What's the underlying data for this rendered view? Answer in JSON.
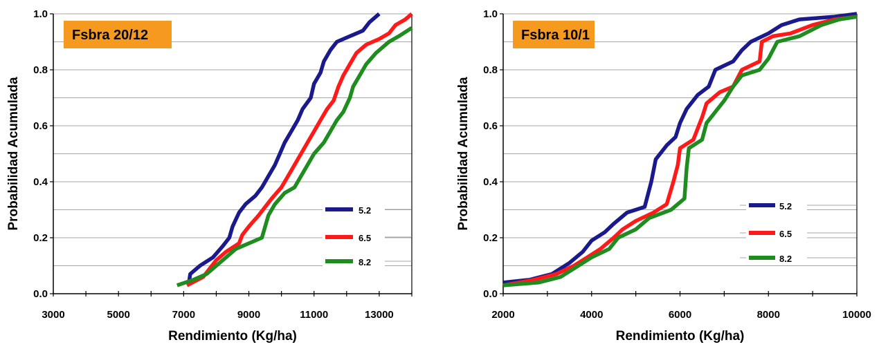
{
  "chart_data": [
    {
      "type": "line",
      "title": "Fsbra 20/12",
      "xlabel": "Rendimiento (Kg/ha)",
      "ylabel": "Probabilidad Acumulada",
      "xlim": [
        3000,
        14000
      ],
      "ylim": [
        0,
        1
      ],
      "x_ticks": [
        "3000",
        "5000",
        "7000",
        "9000",
        "11000",
        "13000"
      ],
      "x_tick_values": [
        3000,
        5000,
        7000,
        9000,
        11000,
        13000
      ],
      "y_ticks": [
        "0.0",
        "0.2",
        "0.4",
        "0.6",
        "0.8",
        "1.0"
      ],
      "y_tick_values": [
        0,
        0.2,
        0.4,
        0.6,
        0.8,
        1.0
      ],
      "grid": "horizontal",
      "legend_position": "bottom-right",
      "series": [
        {
          "name": "5.2",
          "color": "#1a1a8c",
          "points": [
            [
              7150,
              0.03
            ],
            [
              7200,
              0.07
            ],
            [
              7500,
              0.1
            ],
            [
              7900,
              0.13
            ],
            [
              8200,
              0.17
            ],
            [
              8400,
              0.2
            ],
            [
              8500,
              0.24
            ],
            [
              8700,
              0.29
            ],
            [
              8900,
              0.32
            ],
            [
              9200,
              0.35
            ],
            [
              9400,
              0.38
            ],
            [
              9600,
              0.42
            ],
            [
              9800,
              0.46
            ],
            [
              9950,
              0.5
            ],
            [
              10100,
              0.54
            ],
            [
              10300,
              0.58
            ],
            [
              10500,
              0.62
            ],
            [
              10650,
              0.66
            ],
            [
              10900,
              0.7
            ],
            [
              11000,
              0.75
            ],
            [
              11200,
              0.79
            ],
            [
              11300,
              0.83
            ],
            [
              11500,
              0.87
            ],
            [
              11700,
              0.9
            ],
            [
              12100,
              0.92
            ],
            [
              12500,
              0.94
            ],
            [
              12700,
              0.97
            ],
            [
              13000,
              1.0
            ]
          ]
        },
        {
          "name": "6.5",
          "color": "#ff1a1a",
          "points": [
            [
              7100,
              0.03
            ],
            [
              7600,
              0.06
            ],
            [
              7800,
              0.09
            ],
            [
              8000,
              0.12
            ],
            [
              8300,
              0.15
            ],
            [
              8700,
              0.18
            ],
            [
              8800,
              0.21
            ],
            [
              9000,
              0.24
            ],
            [
              9300,
              0.28
            ],
            [
              9500,
              0.31
            ],
            [
              9700,
              0.34
            ],
            [
              10000,
              0.38
            ],
            [
              10200,
              0.42
            ],
            [
              10400,
              0.46
            ],
            [
              10600,
              0.5
            ],
            [
              10800,
              0.54
            ],
            [
              11000,
              0.58
            ],
            [
              11200,
              0.62
            ],
            [
              11400,
              0.66
            ],
            [
              11600,
              0.69
            ],
            [
              11750,
              0.74
            ],
            [
              11900,
              0.78
            ],
            [
              12100,
              0.82
            ],
            [
              12300,
              0.86
            ],
            [
              12600,
              0.89
            ],
            [
              13000,
              0.91
            ],
            [
              13300,
              0.93
            ],
            [
              13500,
              0.96
            ],
            [
              13800,
              0.98
            ],
            [
              14000,
              1.0
            ]
          ]
        },
        {
          "name": "8.2",
          "color": "#1f8c1f",
          "points": [
            [
              6800,
              0.03
            ],
            [
              7300,
              0.05
            ],
            [
              7700,
              0.07
            ],
            [
              8000,
              0.1
            ],
            [
              8300,
              0.13
            ],
            [
              8600,
              0.16
            ],
            [
              9000,
              0.18
            ],
            [
              9400,
              0.2
            ],
            [
              9500,
              0.24
            ],
            [
              9600,
              0.28
            ],
            [
              9800,
              0.32
            ],
            [
              10100,
              0.36
            ],
            [
              10400,
              0.38
            ],
            [
              10600,
              0.42
            ],
            [
              10800,
              0.46
            ],
            [
              11000,
              0.5
            ],
            [
              11300,
              0.54
            ],
            [
              11500,
              0.58
            ],
            [
              11700,
              0.62
            ],
            [
              11900,
              0.65
            ],
            [
              12100,
              0.7
            ],
            [
              12200,
              0.74
            ],
            [
              12400,
              0.78
            ],
            [
              12600,
              0.82
            ],
            [
              12900,
              0.86
            ],
            [
              13300,
              0.9
            ],
            [
              13600,
              0.92
            ],
            [
              14000,
              0.95
            ]
          ]
        }
      ]
    },
    {
      "type": "line",
      "title": "Fsbra 10/1",
      "xlabel": "Rendimiento (Kg/ha)",
      "ylabel": "Probabilidad Acumulada",
      "xlim": [
        2000,
        10000
      ],
      "ylim": [
        0,
        1
      ],
      "x_ticks": [
        "2000",
        "4000",
        "6000",
        "8000",
        "10000"
      ],
      "x_tick_values": [
        2000,
        4000,
        6000,
        8000,
        10000
      ],
      "y_ticks": [
        "0.0",
        "0.2",
        "0.4",
        "0.6",
        "0.8",
        "1.0"
      ],
      "y_tick_values": [
        0,
        0.2,
        0.4,
        0.6,
        0.8,
        1.0
      ],
      "grid": "horizontal",
      "legend_position": "bottom-right",
      "series": [
        {
          "name": "5.2",
          "color": "#1a1a8c",
          "points": [
            [
              2000,
              0.04
            ],
            [
              2600,
              0.05
            ],
            [
              3100,
              0.07
            ],
            [
              3500,
              0.11
            ],
            [
              3800,
              0.15
            ],
            [
              4000,
              0.19
            ],
            [
              4300,
              0.22
            ],
            [
              4500,
              0.25
            ],
            [
              4800,
              0.29
            ],
            [
              5200,
              0.31
            ],
            [
              5350,
              0.4
            ],
            [
              5450,
              0.48
            ],
            [
              5700,
              0.53
            ],
            [
              5900,
              0.56
            ],
            [
              6000,
              0.61
            ],
            [
              6150,
              0.66
            ],
            [
              6400,
              0.71
            ],
            [
              6650,
              0.74
            ],
            [
              6800,
              0.8
            ],
            [
              7200,
              0.83
            ],
            [
              7400,
              0.87
            ],
            [
              7600,
              0.9
            ],
            [
              8000,
              0.93
            ],
            [
              8300,
              0.96
            ],
            [
              8700,
              0.98
            ],
            [
              9500,
              0.99
            ],
            [
              10000,
              1.0
            ]
          ]
        },
        {
          "name": "6.5",
          "color": "#ff1a1a",
          "points": [
            [
              2000,
              0.03
            ],
            [
              2700,
              0.05
            ],
            [
              3200,
              0.07
            ],
            [
              3600,
              0.1
            ],
            [
              3900,
              0.13
            ],
            [
              4200,
              0.16
            ],
            [
              4500,
              0.2
            ],
            [
              4700,
              0.23
            ],
            [
              5000,
              0.26
            ],
            [
              5400,
              0.29
            ],
            [
              5700,
              0.32
            ],
            [
              5850,
              0.4
            ],
            [
              5950,
              0.46
            ],
            [
              6000,
              0.52
            ],
            [
              6300,
              0.55
            ],
            [
              6500,
              0.63
            ],
            [
              6600,
              0.68
            ],
            [
              6900,
              0.72
            ],
            [
              7200,
              0.74
            ],
            [
              7400,
              0.8
            ],
            [
              7800,
              0.83
            ],
            [
              7850,
              0.9
            ],
            [
              8100,
              0.92
            ],
            [
              8500,
              0.93
            ],
            [
              9000,
              0.96
            ],
            [
              9500,
              0.98
            ],
            [
              10000,
              0.99
            ]
          ]
        },
        {
          "name": "8.2",
          "color": "#1f8c1f",
          "points": [
            [
              2000,
              0.03
            ],
            [
              2800,
              0.04
            ],
            [
              3300,
              0.06
            ],
            [
              3700,
              0.1
            ],
            [
              4000,
              0.13
            ],
            [
              4400,
              0.16
            ],
            [
              4600,
              0.2
            ],
            [
              5000,
              0.23
            ],
            [
              5300,
              0.27
            ],
            [
              5800,
              0.3
            ],
            [
              6100,
              0.34
            ],
            [
              6150,
              0.45
            ],
            [
              6200,
              0.52
            ],
            [
              6500,
              0.55
            ],
            [
              6600,
              0.61
            ],
            [
              6800,
              0.65
            ],
            [
              7000,
              0.69
            ],
            [
              7200,
              0.74
            ],
            [
              7400,
              0.78
            ],
            [
              7800,
              0.8
            ],
            [
              8000,
              0.84
            ],
            [
              8200,
              0.9
            ],
            [
              8700,
              0.92
            ],
            [
              9200,
              0.96
            ],
            [
              9600,
              0.98
            ],
            [
              10000,
              0.99
            ]
          ]
        }
      ]
    }
  ]
}
